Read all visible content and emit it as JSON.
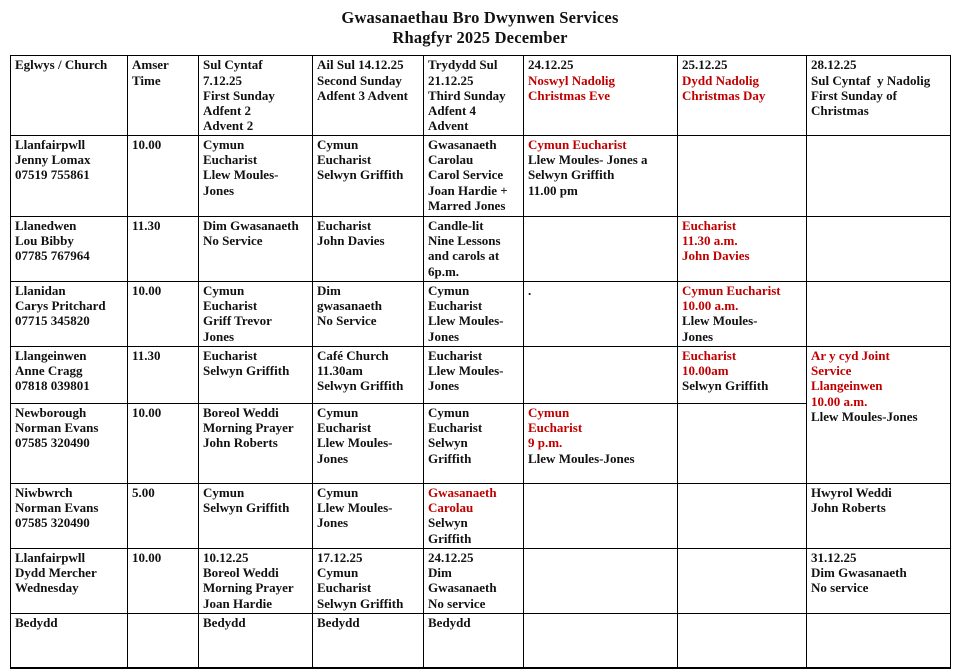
{
  "title": {
    "line1": "Gwasanaethau Bro Dwynwen Services",
    "line2": "Rhagfyr 2025 December"
  },
  "colors": {
    "red": "#C00000",
    "text": "#111111"
  },
  "table": {
    "header": [
      {
        "lines": [
          {
            "t": "Eglwys / Church"
          }
        ]
      },
      {
        "lines": [
          {
            "t": "Amser"
          },
          {
            "t": "Time"
          }
        ]
      },
      {
        "lines": [
          {
            "t": "Sul Cyntaf"
          },
          {
            "t": "7.12.25"
          },
          {
            "t": "First Sunday"
          },
          {
            "t": "Adfent 2"
          },
          {
            "t": "Advent 2"
          }
        ]
      },
      {
        "lines": [
          {
            "t": "Ail Sul 14.12.25"
          },
          {
            "t": "Second Sunday"
          },
          {
            "t": "Adfent 3 Advent"
          }
        ]
      },
      {
        "lines": [
          {
            "t": "Trydydd Sul"
          },
          {
            "t": "21.12.25"
          },
          {
            "t": "Third Sunday"
          },
          {
            "t": "Adfent 4"
          },
          {
            "t": "Advent"
          }
        ]
      },
      {
        "lines": [
          {
            "t": "24.12.25"
          },
          {
            "t": "Noswyl Nadolig",
            "r": 1
          },
          {
            "t": "Christmas Eve",
            "r": 1
          }
        ]
      },
      {
        "lines": [
          {
            "t": "25.12.25"
          },
          {
            "t": "Dydd Nadolig",
            "r": 1
          },
          {
            "t": "Christmas Day",
            "r": 1
          }
        ]
      },
      {
        "lines": [
          {
            "t": "28.12.25"
          },
          {
            "t": "Sul Cyntaf  y Nadolig"
          },
          {
            "t": "First Sunday of"
          },
          {
            "t": "Christmas"
          }
        ]
      }
    ],
    "rows": [
      {
        "id": "llanfairpwll",
        "cells": [
          {
            "lines": [
              {
                "t": "Llanfairpwll"
              },
              {
                "t": "Jenny Lomax"
              },
              {
                "t": "07519 755861"
              }
            ]
          },
          {
            "lines": [
              {
                "t": "10.00"
              }
            ]
          },
          {
            "lines": [
              {
                "t": "Cymun"
              },
              {
                "t": "Eucharist"
              },
              {
                "t": "Llew Moules-"
              },
              {
                "t": "Jones"
              }
            ]
          },
          {
            "lines": [
              {
                "t": "Cymun"
              },
              {
                "t": "Eucharist"
              },
              {
                "t": "Selwyn Griffith"
              }
            ]
          },
          {
            "lines": [
              {
                "t": "Gwasanaeth"
              },
              {
                "t": "Carolau"
              },
              {
                "t": "Carol Service"
              },
              {
                "t": "Joan Hardie +"
              },
              {
                "t": "Marred Jones"
              }
            ]
          },
          {
            "lines": [
              {
                "t": "Cymun Eucharist",
                "r": 1
              },
              {
                "t": "Llew Moules- Jones a"
              },
              {
                "t": "Selwyn Griffith"
              },
              {
                "t": "11.00 pm"
              }
            ]
          },
          {
            "lines": []
          },
          {
            "lines": []
          }
        ]
      },
      {
        "id": "llanedwen",
        "cells": [
          {
            "lines": [
              {
                "t": "Llanedwen"
              },
              {
                "t": "Lou Bibby"
              },
              {
                "t": "07785 767964"
              }
            ]
          },
          {
            "lines": [
              {
                "t": "11.30"
              }
            ]
          },
          {
            "lines": [
              {
                "t": "Dim Gwasanaeth"
              },
              {
                "t": "No Service"
              }
            ]
          },
          {
            "lines": [
              {
                "t": "Eucharist"
              },
              {
                "t": "John Davies"
              }
            ]
          },
          {
            "lines": [
              {
                "t": "Candle-lit"
              },
              {
                "t": "Nine Lessons"
              },
              {
                "t": "and carols at"
              },
              {
                "t": "6p.m."
              }
            ]
          },
          {
            "lines": []
          },
          {
            "lines": [
              {
                "t": "Eucharist",
                "r": 1
              },
              {
                "t": "11.30 a.m.",
                "r": 1
              },
              {
                "t": "John Davies",
                "r": 1
              }
            ]
          },
          {
            "lines": []
          }
        ]
      },
      {
        "id": "llanidan",
        "cells": [
          {
            "lines": [
              {
                "t": "Llanidan"
              },
              {
                "t": "Carys Pritchard"
              },
              {
                "t": "07715 345820"
              }
            ]
          },
          {
            "lines": [
              {
                "t": "10.00"
              }
            ]
          },
          {
            "lines": [
              {
                "t": "Cymun"
              },
              {
                "t": "Eucharist"
              },
              {
                "t": "Griff Trevor"
              },
              {
                "t": "Jones"
              }
            ]
          },
          {
            "lines": [
              {
                "t": "Dim"
              },
              {
                "t": "gwasanaeth"
              },
              {
                "t": "No Service"
              }
            ]
          },
          {
            "lines": [
              {
                "t": "Cymun"
              },
              {
                "t": "Eucharist"
              },
              {
                "t": "Llew Moules-"
              },
              {
                "t": "Jones"
              }
            ]
          },
          {
            "lines": [
              {
                "t": "."
              }
            ]
          },
          {
            "lines": [
              {
                "t": "Cymun Eucharist",
                "r": 1
              },
              {
                "t": "10.00 a.m.",
                "r": 1
              },
              {
                "t": "Llew Moules-"
              },
              {
                "t": "Jones"
              }
            ]
          },
          {
            "lines": []
          }
        ]
      },
      {
        "id": "llangeinwen",
        "cells": [
          {
            "lines": [
              {
                "t": "Llangeinwen"
              },
              {
                "t": "Anne Cragg"
              },
              {
                "t": "07818 039801"
              }
            ]
          },
          {
            "lines": [
              {
                "t": "11.30"
              }
            ]
          },
          {
            "lines": [
              {
                "t": "Eucharist"
              },
              {
                "t": "Selwyn Griffith"
              }
            ]
          },
          {
            "lines": [
              {
                "t": "Café Church"
              },
              {
                "t": "11.30am"
              },
              {
                "t": "Selwyn Griffith"
              }
            ]
          },
          {
            "lines": [
              {
                "t": "Eucharist"
              },
              {
                "t": "Llew Moules-"
              },
              {
                "t": "Jones"
              }
            ]
          },
          {
            "lines": []
          },
          {
            "lines": [
              {
                "t": "Eucharist",
                "r": 1
              },
              {
                "t": "10.00am",
                "r": 1
              },
              {
                "t": "Selwyn Griffith"
              }
            ]
          },
          {
            "rowspan": 2,
            "lines": [
              {
                "t": "Ar y cyd Joint",
                "r": 1
              },
              {
                "t": "Service",
                "r": 1
              },
              {
                "t": "Llangeinwen",
                "r": 1
              },
              {
                "t": "10.00 a.m.",
                "r": 1
              },
              {
                "t": "Llew Moules-Jones"
              }
            ]
          }
        ]
      },
      {
        "id": "newborough",
        "cells": [
          {
            "lines": [
              {
                "t": "Newborough"
              },
              {
                "t": "Norman Evans"
              },
              {
                "t": "07585 320490"
              }
            ]
          },
          {
            "lines": [
              {
                "t": "10.00"
              }
            ]
          },
          {
            "lines": [
              {
                "t": "Boreol Weddi"
              },
              {
                "t": "Morning Prayer"
              },
              {
                "t": "John Roberts"
              }
            ]
          },
          {
            "lines": [
              {
                "t": "Cymun"
              },
              {
                "t": "Eucharist"
              },
              {
                "t": "Llew Moules-"
              },
              {
                "t": "Jones"
              }
            ]
          },
          {
            "lines": [
              {
                "t": "Cymun"
              },
              {
                "t": "Eucharist"
              },
              {
                "t": "Selwyn"
              },
              {
                "t": "Griffith"
              }
            ]
          },
          {
            "lines": [
              {
                "t": "Cymun",
                "r": 1
              },
              {
                "t": "Eucharist",
                "r": 1
              },
              {
                "t": "9 p.m.",
                "r": 1
              },
              {
                "t": "Llew Moules-Jones"
              }
            ]
          },
          {
            "lines": []
          }
        ]
      },
      {
        "id": "niwbwrch",
        "cells": [
          {
            "lines": [
              {
                "t": "Niwbwrch"
              },
              {
                "t": "Norman Evans"
              },
              {
                "t": "07585 320490"
              }
            ]
          },
          {
            "lines": [
              {
                "t": "5.00"
              }
            ]
          },
          {
            "lines": [
              {
                "t": "Cymun"
              },
              {
                "t": "Selwyn Griffith"
              }
            ]
          },
          {
            "lines": [
              {
                "t": "Cymun"
              },
              {
                "t": "Llew Moules-"
              },
              {
                "t": "Jones"
              }
            ]
          },
          {
            "lines": [
              {
                "t": "Gwasanaeth",
                "r": 1
              },
              {
                "t": "Carolau",
                "r": 1
              },
              {
                "t": "Selwyn"
              },
              {
                "t": "Griffith"
              }
            ]
          },
          {
            "lines": []
          },
          {
            "lines": []
          },
          {
            "lines": [
              {
                "t": "Hwyrol Weddi"
              },
              {
                "t": "John Roberts"
              }
            ]
          }
        ]
      },
      {
        "id": "llanfairpwll-wednesday",
        "cells": [
          {
            "lines": [
              {
                "t": "Llanfairpwll"
              },
              {
                "t": "Dydd Mercher"
              },
              {
                "t": "Wednesday"
              }
            ]
          },
          {
            "lines": [
              {
                "t": "10.00"
              }
            ]
          },
          {
            "lines": [
              {
                "t": "10.12.25"
              },
              {
                "t": "Boreol Weddi"
              },
              {
                "t": "Morning Prayer"
              },
              {
                "t": "Joan Hardie"
              }
            ]
          },
          {
            "lines": [
              {
                "t": "17.12.25"
              },
              {
                "t": "Cymun"
              },
              {
                "t": "Eucharist"
              },
              {
                "t": "Selwyn Griffith"
              }
            ]
          },
          {
            "lines": [
              {
                "t": "24.12.25"
              },
              {
                "t": "Dim"
              },
              {
                "t": "Gwasanaeth"
              },
              {
                "t": "No service"
              }
            ]
          },
          {
            "lines": []
          },
          {
            "lines": []
          },
          {
            "lines": [
              {
                "t": "31.12.25"
              },
              {
                "t": "Dim Gwasanaeth"
              },
              {
                "t": "No service"
              }
            ]
          }
        ]
      },
      {
        "id": "bedydd",
        "cells": [
          {
            "lines": [
              {
                "t": "Bedydd"
              }
            ]
          },
          {
            "lines": []
          },
          {
            "lines": [
              {
                "t": "Bedydd"
              }
            ]
          },
          {
            "lines": [
              {
                "t": "Bedydd"
              }
            ]
          },
          {
            "lines": [
              {
                "t": "Bedydd"
              }
            ]
          },
          {
            "lines": []
          },
          {
            "lines": []
          },
          {
            "lines": []
          }
        ]
      }
    ]
  }
}
